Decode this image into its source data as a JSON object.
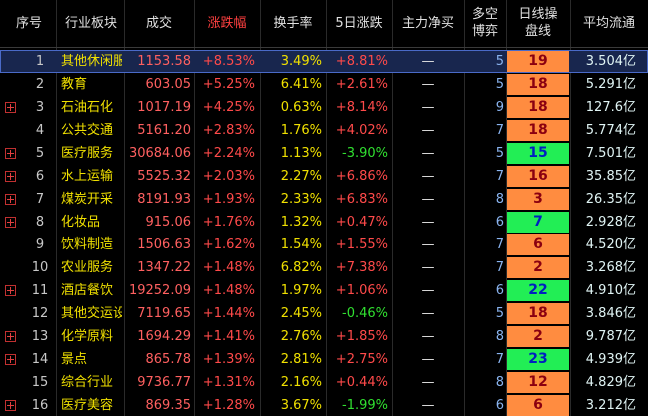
{
  "table": {
    "headers": [
      "序号",
      "行业板块",
      "成交",
      "涨跌幅",
      "换手率",
      "5日涨跌",
      "主力净买",
      "多空博弈",
      "日线操盘线",
      "平均流通"
    ],
    "sorted_column": 3,
    "selected_row": 0,
    "rows": [
      [
        "1",
        "其他休闲服",
        "1153.58",
        "+8.53%",
        "3.49%",
        "+8.81%",
        "—",
        "5",
        "19",
        "3.504亿"
      ],
      [
        "2",
        "教育",
        "603.05",
        "+5.25%",
        "6.41%",
        "+2.61%",
        "—",
        "5",
        "18",
        "5.291亿"
      ],
      [
        "3",
        "石油石化",
        "1017.19",
        "+4.25%",
        "0.63%",
        "+8.14%",
        "—",
        "9",
        "18",
        "127.6亿"
      ],
      [
        "4",
        "公共交通",
        "5161.20",
        "+2.83%",
        "1.76%",
        "+4.02%",
        "—",
        "7",
        "18",
        "5.774亿"
      ],
      [
        "5",
        "医疗服务",
        "30684.06",
        "+2.24%",
        "1.13%",
        "-3.90%",
        "—",
        "5",
        "15",
        "7.501亿"
      ],
      [
        "6",
        "水上运输",
        "5525.32",
        "+2.03%",
        "2.27%",
        "+6.86%",
        "—",
        "7",
        "16",
        "35.85亿"
      ],
      [
        "7",
        "煤炭开采",
        "8191.93",
        "+1.93%",
        "2.33%",
        "+6.83%",
        "—",
        "8",
        "3",
        "26.35亿"
      ],
      [
        "8",
        "化妆品",
        "915.06",
        "+1.76%",
        "1.32%",
        "+0.47%",
        "—",
        "6",
        "7",
        "2.928亿"
      ],
      [
        "9",
        "饮料制造",
        "1506.63",
        "+1.62%",
        "1.54%",
        "+1.55%",
        "—",
        "7",
        "6",
        "4.520亿"
      ],
      [
        "10",
        "农业服务",
        "1347.22",
        "+1.48%",
        "6.82%",
        "+7.38%",
        "—",
        "7",
        "2",
        "3.268亿"
      ],
      [
        "11",
        "酒店餐饮",
        "19252.09",
        "+1.48%",
        "1.97%",
        "+1.06%",
        "—",
        "6",
        "22",
        "4.910亿"
      ],
      [
        "12",
        "其他交运设",
        "7119.65",
        "+1.44%",
        "2.45%",
        "-0.46%",
        "—",
        "5",
        "18",
        "3.846亿"
      ],
      [
        "13",
        "化学原料",
        "1694.29",
        "+1.41%",
        "2.76%",
        "+1.85%",
        "—",
        "8",
        "2",
        "9.787亿"
      ],
      [
        "14",
        "景点",
        "865.78",
        "+1.39%",
        "2.81%",
        "+2.75%",
        "—",
        "7",
        "23",
        "4.939亿"
      ],
      [
        "15",
        "综合行业",
        "9736.77",
        "+1.31%",
        "2.16%",
        "+0.44%",
        "—",
        "8",
        "12",
        "4.829亿"
      ],
      [
        "16",
        "医疗美容",
        "869.35",
        "+1.28%",
        "3.67%",
        "-1.99%",
        "—",
        "6",
        "6",
        "3.212亿"
      ]
    ],
    "expandable": [
      false,
      false,
      true,
      false,
      true,
      true,
      true,
      true,
      false,
      false,
      true,
      false,
      true,
      true,
      false,
      true
    ],
    "daily_line_colors": [
      "#ff8c40",
      "#ff8c40",
      "#ff8c40",
      "#ff8c40",
      "#22ee55",
      "#ff8c40",
      "#ff8c40",
      "#22ee55",
      "#ff8c40",
      "#ff8c40",
      "#22ee55",
      "#ff8c40",
      "#ff8c40",
      "#22ee55",
      "#ff8c40",
      "#ff8c40"
    ]
  }
}
